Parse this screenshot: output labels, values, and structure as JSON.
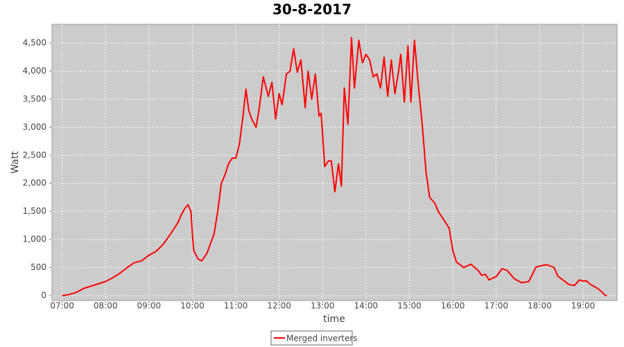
{
  "chart_data": {
    "type": "line",
    "title": "30-8-2017",
    "x_label": "time",
    "y_label": "Watt",
    "x": [
      "07:00",
      "07:10",
      "07:20",
      "07:30",
      "07:40",
      "07:50",
      "08:00",
      "08:10",
      "08:20",
      "08:30",
      "08:40",
      "08:50",
      "09:00",
      "09:10",
      "09:20",
      "09:30",
      "09:40",
      "09:45",
      "09:50",
      "09:54",
      "09:58",
      "10:00",
      "10:02",
      "10:08",
      "10:13",
      "10:20",
      "10:30",
      "10:35",
      "10:40",
      "10:45",
      "10:50",
      "10:55",
      "11:00",
      "11:05",
      "11:10",
      "11:14",
      "11:18",
      "11:22",
      "11:28",
      "11:32",
      "11:38",
      "11:42",
      "11:45",
      "11:50",
      "11:55",
      "12:00",
      "12:04",
      "12:10",
      "12:15",
      "12:20",
      "12:25",
      "12:30",
      "12:36",
      "12:40",
      "12:45",
      "12:50",
      "12:55",
      "12:58",
      "13:03",
      "13:08",
      "13:12",
      "13:17",
      "13:22",
      "13:26",
      "13:30",
      "13:35",
      "13:40",
      "13:44",
      "13:50",
      "13:55",
      "14:00",
      "14:05",
      "14:10",
      "14:15",
      "14:20",
      "14:25",
      "14:30",
      "14:35",
      "14:40",
      "14:45",
      "14:48",
      "14:53",
      "14:58",
      "15:02",
      "15:07",
      "15:12",
      "15:18",
      "15:23",
      "15:28",
      "15:35",
      "15:40",
      "15:50",
      "15:55",
      "16:00",
      "16:05",
      "16:15",
      "16:25",
      "16:35",
      "16:40",
      "16:45",
      "16:50",
      "17:00",
      "17:08",
      "17:15",
      "17:25",
      "17:35",
      "17:45",
      "17:50",
      "17:55",
      "18:05",
      "18:10",
      "18:20",
      "18:25",
      "18:35",
      "18:40",
      "18:48",
      "18:55",
      "19:00",
      "19:05",
      "19:10",
      "19:20",
      "19:25",
      "19:30",
      "19:33"
    ],
    "series": [
      {
        "name": "Merged inverters",
        "color": "#ff0000",
        "values": [
          0,
          20,
          60,
          130,
          170,
          210,
          250,
          320,
          400,
          500,
          590,
          620,
          720,
          790,
          920,
          1100,
          1300,
          1450,
          1560,
          1620,
          1500,
          1100,
          800,
          650,
          620,
          750,
          1100,
          1500,
          2000,
          2150,
          2350,
          2450,
          2450,
          2700,
          3200,
          3680,
          3300,
          3150,
          3000,
          3300,
          3900,
          3700,
          3550,
          3800,
          3150,
          3600,
          3400,
          3950,
          4000,
          4400,
          3980,
          4200,
          3350,
          4000,
          3500,
          3950,
          3200,
          3250,
          2300,
          2400,
          2400,
          1850,
          2350,
          1950,
          3700,
          3050,
          4600,
          3700,
          4550,
          4150,
          4300,
          4200,
          3900,
          3950,
          3700,
          4250,
          3550,
          4200,
          3600,
          4000,
          4300,
          3450,
          4450,
          3450,
          4550,
          3800,
          3000,
          2200,
          1750,
          1650,
          1500,
          1300,
          1200,
          800,
          600,
          500,
          560,
          450,
          360,
          380,
          280,
          340,
          480,
          450,
          300,
          230,
          250,
          380,
          510,
          540,
          550,
          500,
          350,
          250,
          200,
          180,
          280,
          260,
          260,
          200,
          130,
          80,
          10,
          0
        ]
      }
    ],
    "xlim": [
      "06:46",
      "19:47"
    ],
    "xticks": [
      "07:00",
      "08:00",
      "09:00",
      "10:00",
      "11:00",
      "12:00",
      "13:00",
      "14:00",
      "15:00",
      "16:00",
      "17:00",
      "18:00",
      "19:00"
    ],
    "ylim": [
      -87,
      4835
    ],
    "yticks": [
      0,
      500,
      {
        "value": 1000,
        "label": "1,000"
      },
      {
        "value": 1500,
        "label": "1,500"
      },
      {
        "value": 2000,
        "label": "2,000"
      },
      {
        "value": 2500,
        "label": "2,500"
      },
      {
        "value": 3000,
        "label": "3,000"
      },
      {
        "value": 3500,
        "label": "3,500"
      },
      {
        "value": 4000,
        "label": "4,000"
      },
      {
        "value": 4500,
        "label": "4,500"
      }
    ],
    "grid": true,
    "legend": "bottom"
  }
}
